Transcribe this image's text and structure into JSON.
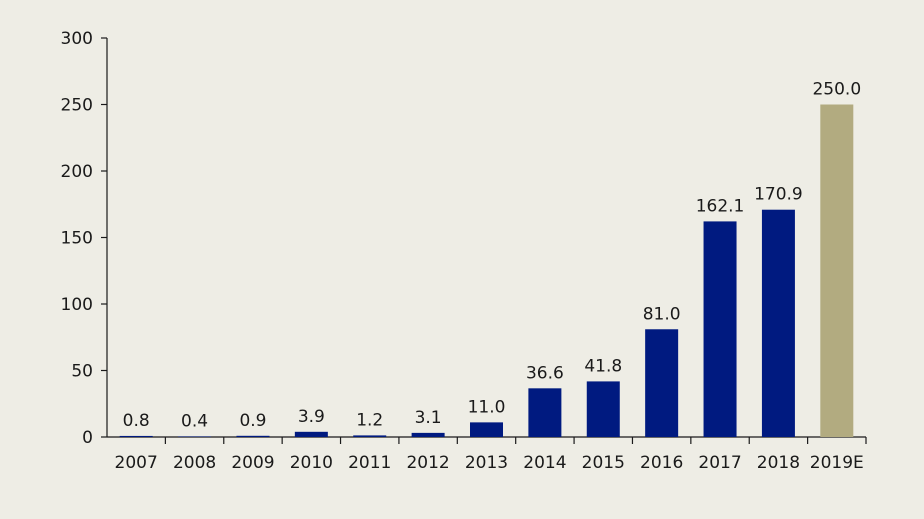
{
  "chart_data": {
    "type": "bar",
    "categories": [
      "2007",
      "2008",
      "2009",
      "2010",
      "2011",
      "2012",
      "2013",
      "2014",
      "2015",
      "2016",
      "2017",
      "2018",
      "2019E"
    ],
    "values": [
      0.8,
      0.4,
      0.9,
      3.9,
      1.2,
      3.1,
      11.0,
      36.6,
      41.8,
      81.0,
      162.1,
      170.9,
      250.0
    ],
    "value_labels": [
      "0.8",
      "0.4",
      "0.9",
      "3.9",
      "1.2",
      "3.1",
      "11.0",
      "36.6",
      "41.8",
      "81.0",
      "162.1",
      "170.9",
      "250.0"
    ],
    "estimate_categories": [
      "2019E"
    ],
    "ylim": [
      0,
      300
    ],
    "yticks": [
      "0",
      "50",
      "100",
      "150",
      "200",
      "250",
      "300"
    ],
    "title": "",
    "xlabel": "",
    "ylabel": "",
    "grid": false,
    "legend": "none",
    "colors": {
      "actual": "#001a80",
      "estimate": "#b2ab80",
      "background": "#eeede5",
      "axis": "#1a1a1a"
    }
  }
}
